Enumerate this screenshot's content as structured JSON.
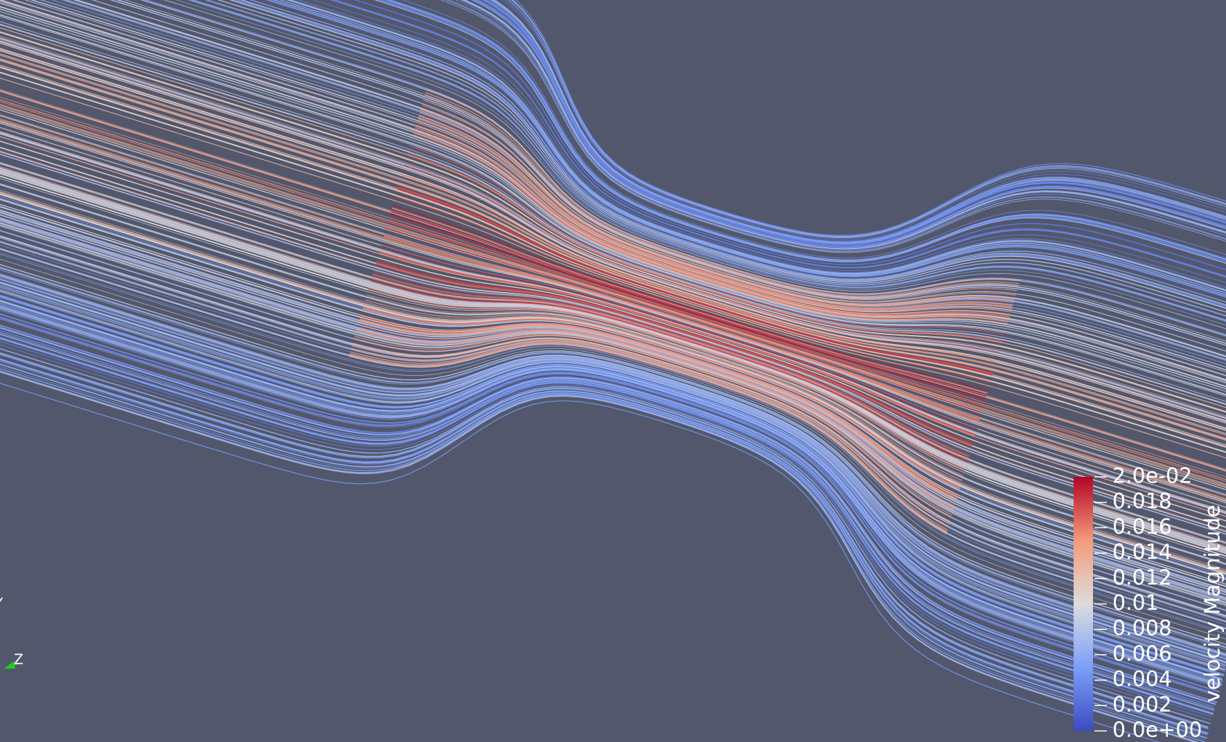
{
  "color_legend": {
    "title": "velocity Magnitude",
    "range": [
      0,
      0.02
    ],
    "ticks": [
      {
        "value": 0.02,
        "label": "2.0e-02"
      },
      0.018,
      0.016,
      0.014,
      0.012,
      0.01,
      0.008,
      0.006,
      0.004,
      0.002,
      {
        "value": 0,
        "label": "0.0e+00"
      }
    ]
  },
  "orientation_axes": {
    "y_label": "Y",
    "z_label": "Z"
  }
}
